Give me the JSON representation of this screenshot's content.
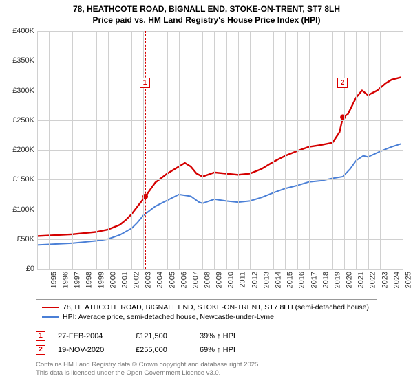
{
  "title_line1": "78, HEATHCOTE ROAD, BIGNALL END, STOKE-ON-TRENT, ST7 8LH",
  "title_line2": "Price paid vs. HM Land Registry's House Price Index (HPI)",
  "chart": {
    "type": "line",
    "background_color": "#ffffff",
    "grid_color": "#d0d0d0",
    "ylim": [
      0,
      400000
    ],
    "yticks": [
      0,
      50000,
      100000,
      150000,
      200000,
      250000,
      300000,
      350000,
      400000
    ],
    "ytick_labels": [
      "£0",
      "£50K",
      "£100K",
      "£150K",
      "£200K",
      "£250K",
      "£300K",
      "£350K",
      "£400K"
    ],
    "xlim": [
      1995,
      2026
    ],
    "xticks": [
      1995,
      1996,
      1997,
      1998,
      1999,
      2000,
      2001,
      2002,
      2003,
      2004,
      2005,
      2006,
      2007,
      2008,
      2009,
      2010,
      2011,
      2012,
      2013,
      2014,
      2015,
      2016,
      2017,
      2018,
      2019,
      2020,
      2021,
      2022,
      2023,
      2024,
      2025
    ],
    "series": [
      {
        "name": "price_paid",
        "color": "#d40000",
        "width": 2.4,
        "label": "78, HEATHCOTE ROAD, BIGNALL END, STOKE-ON-TRENT, ST7 8LH (semi-detached house)",
        "points": [
          [
            1995,
            55000
          ],
          [
            1996,
            56000
          ],
          [
            1997,
            57000
          ],
          [
            1998,
            58000
          ],
          [
            1999,
            60000
          ],
          [
            2000,
            62000
          ],
          [
            2001,
            66000
          ],
          [
            2002,
            74000
          ],
          [
            2002.5,
            82000
          ],
          [
            2003,
            92000
          ],
          [
            2003.5,
            105000
          ],
          [
            2004.15,
            121500
          ],
          [
            2005,
            145000
          ],
          [
            2006,
            160000
          ],
          [
            2007,
            172000
          ],
          [
            2007.5,
            178000
          ],
          [
            2008,
            172000
          ],
          [
            2008.5,
            160000
          ],
          [
            2009,
            155000
          ],
          [
            2010,
            162000
          ],
          [
            2011,
            160000
          ],
          [
            2012,
            158000
          ],
          [
            2013,
            160000
          ],
          [
            2014,
            168000
          ],
          [
            2015,
            180000
          ],
          [
            2016,
            190000
          ],
          [
            2017,
            198000
          ],
          [
            2018,
            205000
          ],
          [
            2019,
            208000
          ],
          [
            2020,
            212000
          ],
          [
            2020.6,
            230000
          ],
          [
            2020.88,
            255000
          ],
          [
            2021.3,
            260000
          ],
          [
            2022,
            288000
          ],
          [
            2022.5,
            300000
          ],
          [
            2023,
            292000
          ],
          [
            2023.8,
            300000
          ],
          [
            2024.5,
            312000
          ],
          [
            2025,
            318000
          ],
          [
            2025.8,
            322000
          ]
        ]
      },
      {
        "name": "hpi",
        "color": "#4a7fd6",
        "width": 2,
        "label": "HPI: Average price, semi-detached house, Newcastle-under-Lyme",
        "points": [
          [
            1995,
            40000
          ],
          [
            1996,
            41000
          ],
          [
            1997,
            42000
          ],
          [
            1998,
            43000
          ],
          [
            1999,
            45000
          ],
          [
            2000,
            47000
          ],
          [
            2001,
            50000
          ],
          [
            2002,
            57000
          ],
          [
            2003,
            68000
          ],
          [
            2003.5,
            78000
          ],
          [
            2004,
            90000
          ],
          [
            2005,
            105000
          ],
          [
            2006,
            115000
          ],
          [
            2007,
            125000
          ],
          [
            2008,
            122000
          ],
          [
            2008.7,
            112000
          ],
          [
            2009,
            110000
          ],
          [
            2010,
            117000
          ],
          [
            2011,
            114000
          ],
          [
            2012,
            112000
          ],
          [
            2013,
            114000
          ],
          [
            2014,
            120000
          ],
          [
            2015,
            128000
          ],
          [
            2016,
            135000
          ],
          [
            2017,
            140000
          ],
          [
            2018,
            146000
          ],
          [
            2019,
            148000
          ],
          [
            2020,
            152000
          ],
          [
            2020.88,
            155000
          ],
          [
            2021.5,
            168000
          ],
          [
            2022,
            182000
          ],
          [
            2022.6,
            190000
          ],
          [
            2023,
            188000
          ],
          [
            2024,
            197000
          ],
          [
            2025,
            205000
          ],
          [
            2025.8,
            210000
          ]
        ]
      }
    ],
    "sale_markers": [
      {
        "num": "1",
        "x": 2004.15,
        "y": 121500,
        "dash_color": "#d40000"
      },
      {
        "num": "2",
        "x": 2020.88,
        "y": 255000,
        "dash_color": "#d40000"
      }
    ],
    "marker_label_y_offset": 68
  },
  "sales": [
    {
      "num": "1",
      "date": "27-FEB-2004",
      "price": "£121,500",
      "delta": "39% ↑ HPI"
    },
    {
      "num": "2",
      "date": "19-NOV-2020",
      "price": "£255,000",
      "delta": "69% ↑ HPI"
    }
  ],
  "footer_line1": "Contains HM Land Registry data © Crown copyright and database right 2025.",
  "footer_line2": "This data is licensed under the Open Government Licence v3.0.",
  "label_fontsize": 11,
  "title_fontsize": 12
}
